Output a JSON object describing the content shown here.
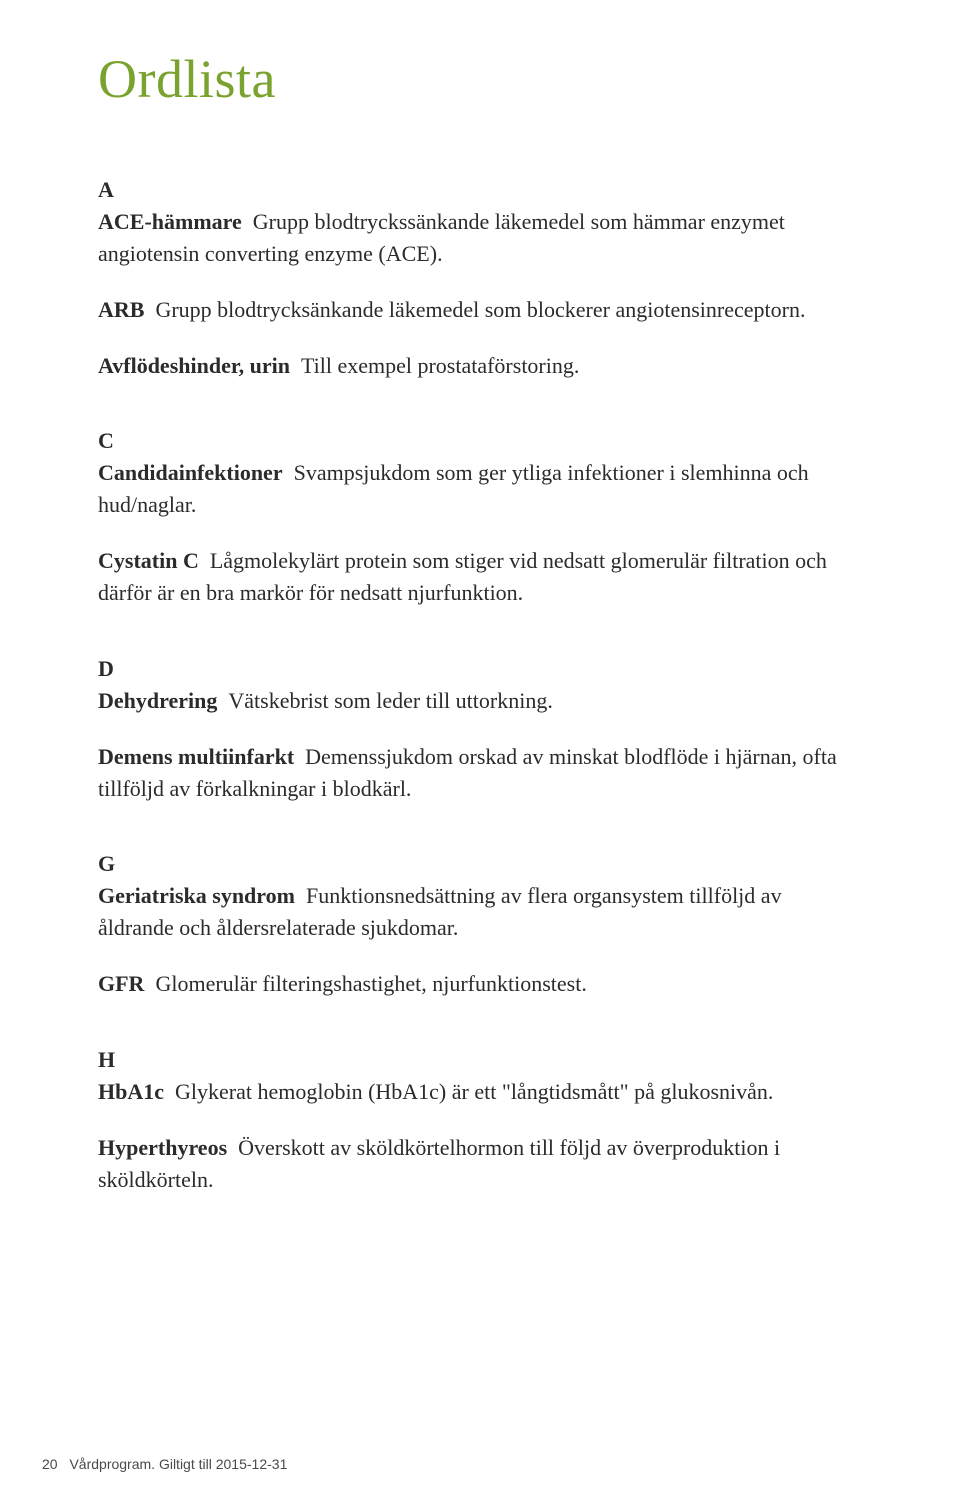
{
  "title": {
    "text": "Ordlista",
    "color": "#7aa22f"
  },
  "sections": {
    "A": {
      "letter": "A",
      "entries": [
        {
          "term": "ACE-hämmare",
          "def": "Grupp blodtryckssänkande läkemedel som hämmar enzymet angiotensin converting enzyme (ACE)."
        },
        {
          "term": "ARB",
          "def": "Grupp blodtrycksänkande läkemedel som blockerer angiotensinreceptorn."
        },
        {
          "term": "Avflödeshinder, urin",
          "def": "Till exempel prostataförstoring."
        }
      ]
    },
    "C": {
      "letter": "C",
      "entries": [
        {
          "term": "Candidainfektioner",
          "def": "Svampsjukdom som ger ytliga infektioner i slemhinna och hud/naglar."
        },
        {
          "term": "Cystatin C",
          "def": "Lågmolekylärt protein som stiger vid nedsatt glomerulär filtration och därför är en bra markör för nedsatt njurfunktion."
        }
      ]
    },
    "D": {
      "letter": "D",
      "entries": [
        {
          "term": "Dehydrering",
          "def": "Vätskebrist som leder till uttorkning."
        },
        {
          "term": "Demens multiinfarkt",
          "def": "Demenssjukdom orskad av minskat blodflöde i hjärnan, ofta tillföljd av förkalkningar i blodkärl."
        }
      ]
    },
    "G": {
      "letter": "G",
      "entries": [
        {
          "term": "Geriatriska syndrom",
          "def": "Funktionsnedsättning av flera organsystem tillföljd av åldrande och åldersrelaterade sjukdomar."
        },
        {
          "term": "GFR",
          "def": "Glomerulär filteringshastighet, njurfunktionstest."
        }
      ]
    },
    "H": {
      "letter": "H",
      "entries": [
        {
          "term": "HbA1c",
          "def": "Glykerat hemoglobin (HbA1c) är ett \"långtidsmått\" på glukosnivån."
        },
        {
          "term": "Hyperthyreos",
          "def": "Överskott av sköldkörtelhormon till följd av överproduktion i sköldkörteln."
        }
      ]
    }
  },
  "footer": {
    "page_number": "20",
    "text": "Vårdprogram. Giltigt till 2015-12-31"
  },
  "body_text_color": "#2b2b2b",
  "background_color": "#ffffff"
}
